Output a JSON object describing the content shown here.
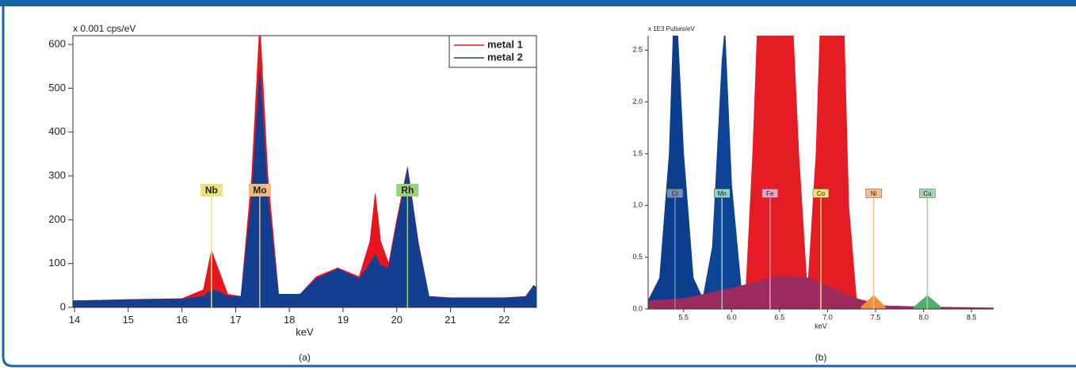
{
  "chart_data": [
    {
      "type": "area",
      "y_label": "x 0.001 cps/eV",
      "x_label": "keV",
      "caption": "(a)",
      "xlim": [
        13.97,
        22.6
      ],
      "ylim": [
        0,
        620
      ],
      "xticks": [
        14,
        15,
        16,
        17,
        18,
        19,
        20,
        21,
        22
      ],
      "yticks": [
        0,
        100,
        200,
        300,
        400,
        500,
        600
      ],
      "legend": "upper right",
      "series": [
        {
          "name": "metal 1",
          "color": "#e8141e",
          "x": [
            13.97,
            15,
            16,
            16.4,
            16.55,
            16.7,
            16.85,
            17.1,
            17.3,
            17.45,
            17.6,
            17.8,
            18.2,
            18.5,
            18.9,
            19.3,
            19.5,
            19.6,
            19.7,
            19.85,
            20.0,
            20.2,
            20.4,
            20.6,
            21,
            22,
            22.4,
            22.55,
            22.6
          ],
          "values": [
            15,
            18,
            20,
            40,
            130,
            80,
            30,
            25,
            300,
            650,
            300,
            30,
            30,
            70,
            90,
            70,
            150,
            260,
            150,
            100,
            200,
            320,
            150,
            25,
            22,
            22,
            25,
            50,
            45
          ]
        },
        {
          "name": "metal 2",
          "color": "#123f8f",
          "x": [
            13.97,
            15,
            16,
            16.4,
            16.55,
            16.7,
            16.85,
            17.1,
            17.3,
            17.45,
            17.6,
            17.8,
            18.2,
            18.5,
            18.9,
            19.3,
            19.5,
            19.6,
            19.7,
            19.85,
            20.0,
            20.2,
            20.4,
            20.6,
            21,
            22,
            22.4,
            22.55,
            22.6
          ],
          "values": [
            15,
            17,
            19,
            25,
            40,
            35,
            25,
            25,
            250,
            540,
            250,
            30,
            30,
            65,
            88,
            65,
            100,
            120,
            95,
            90,
            190,
            315,
            145,
            25,
            21,
            21,
            24,
            50,
            45
          ]
        }
      ],
      "markers": [
        {
          "label": "Nb",
          "x": 16.55,
          "color": "#ece27a"
        },
        {
          "label": "Mo",
          "x": 17.45,
          "color": "#f2b882"
        },
        {
          "label": "Rh",
          "x": 20.2,
          "color": "#9ccf7a"
        }
      ]
    },
    {
      "type": "area",
      "y_label": "x 1E3 Pulses/eV",
      "x_label": "keV",
      "caption": "(b)",
      "xlim": [
        5.13,
        8.73
      ],
      "ylim": [
        0,
        2.64
      ],
      "xticks": [
        5.5,
        {
          "value": 6,
          "label": "6.0"
        },
        6.5,
        {
          "value": 7,
          "label": "7.0"
        },
        7.5,
        {
          "value": 8,
          "label": "8.0"
        },
        8.5
      ],
      "yticks": [
        {
          "value": 0,
          "label": "0.0"
        },
        0.5,
        {
          "value": 1,
          "label": "1.0"
        },
        1.5,
        {
          "value": 2,
          "label": "2.0"
        },
        2.5
      ],
      "series": [
        {
          "color": "#0b3f8e",
          "x": [
            5.13,
            5.25,
            5.35,
            5.41,
            5.5,
            5.6,
            5.7
          ],
          "values": [
            0.08,
            0.3,
            1.5,
            3.2,
            1.5,
            0.3,
            0.1
          ]
        },
        {
          "color": "#0d4494",
          "x": [
            5.7,
            5.8,
            5.9,
            5.93,
            6.0,
            6.1,
            6.2
          ],
          "values": [
            0.1,
            0.6,
            2.4,
            2.7,
            1.2,
            0.2,
            0.15
          ]
        },
        {
          "color": "#e51c24",
          "x": [
            6.15,
            6.22,
            6.3,
            6.6,
            6.7,
            6.78
          ],
          "values": [
            0.2,
            1.5,
            3.5,
            3.5,
            1.5,
            0.3
          ]
        },
        {
          "color": "#e51c24",
          "x": [
            6.8,
            6.88,
            6.95,
            7.15,
            7.22,
            7.3
          ],
          "values": [
            0.3,
            1.5,
            3.5,
            3.5,
            1.0,
            0.1
          ]
        },
        {
          "color": "#9b2b5e",
          "x": [
            5.13,
            5.5,
            6.0,
            6.5,
            6.8,
            7.0,
            7.3,
            7.6,
            8.0,
            8.73
          ],
          "values": [
            0.08,
            0.1,
            0.2,
            0.32,
            0.3,
            0.22,
            0.1,
            0.03,
            0.02,
            0.01
          ]
        },
        {
          "color": "#f08a3c",
          "x": [
            7.35,
            7.48,
            7.6
          ],
          "values": [
            0.02,
            0.13,
            0.02
          ]
        },
        {
          "color": "#4caf6a",
          "x": [
            7.9,
            8.04,
            8.18
          ],
          "values": [
            0.02,
            0.13,
            0.02
          ]
        }
      ],
      "markers": [
        {
          "label": "Cr",
          "x": 5.41,
          "color": "#7c88b8"
        },
        {
          "label": "Mn",
          "x": 5.9,
          "color": "#8fd0c6"
        },
        {
          "label": "Fe",
          "x": 6.4,
          "color": "#e8a2c8"
        },
        {
          "label": "Co",
          "x": 6.93,
          "color": "#f4e07a"
        },
        {
          "label": "Ni",
          "x": 7.48,
          "color": "#f5be8e"
        },
        {
          "label": "Cu",
          "x": 8.04,
          "color": "#9ed6a8"
        }
      ]
    }
  ]
}
